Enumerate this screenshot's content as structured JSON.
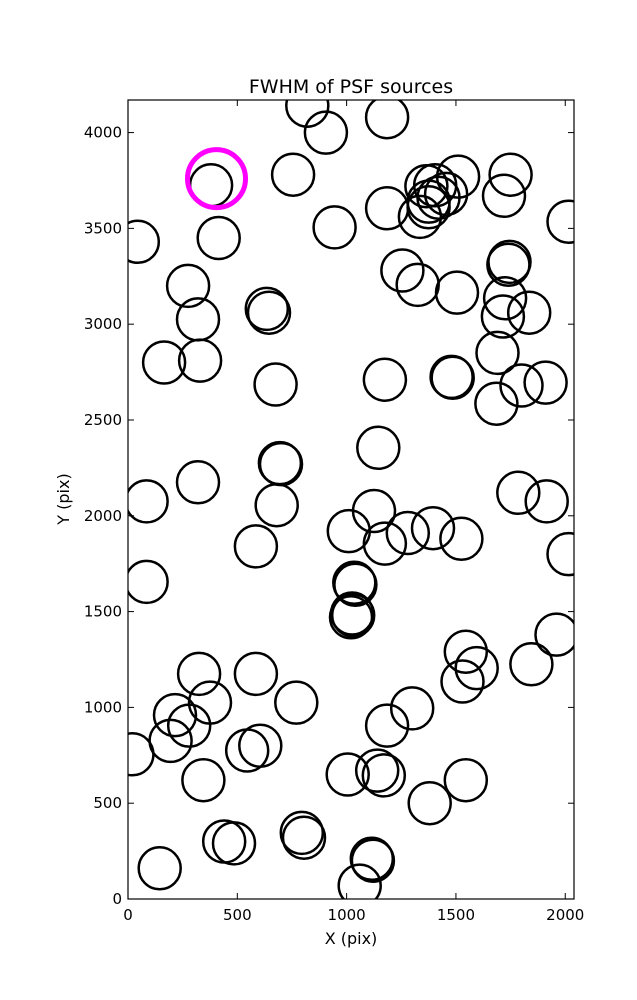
{
  "chart_data": {
    "type": "scatter",
    "title": "FWHM of PSF sources",
    "xlabel": "X (pix)",
    "ylabel": "Y (pix)",
    "xlim": [
      0,
      2040
    ],
    "ylim": [
      0,
      4170
    ],
    "xticks": [
      0,
      500,
      1000,
      1500,
      2000
    ],
    "yticks": [
      0,
      500,
      1000,
      1500,
      2000,
      2500,
      3000,
      3500,
      4000
    ],
    "grid": false,
    "marker": "open-circle",
    "marker_color": "#000000",
    "highlight_color": "#ff00ff",
    "points": [
      [
        820,
        4140
      ],
      [
        905,
        4000
      ],
      [
        1185,
        4080
      ],
      [
        380,
        3725
      ],
      [
        755,
        3780
      ],
      [
        1185,
        3605
      ],
      [
        1365,
        3720
      ],
      [
        1405,
        3725
      ],
      [
        1375,
        3640
      ],
      [
        1420,
        3660
      ],
      [
        1455,
        3680
      ],
      [
        1510,
        3770
      ],
      [
        1750,
        3780
      ],
      [
        1720,
        3670
      ],
      [
        45,
        3430
      ],
      [
        945,
        3505
      ],
      [
        2015,
        3535
      ],
      [
        1335,
        3560
      ],
      [
        1375,
        3610
      ],
      [
        275,
        3200
      ],
      [
        415,
        3450
      ],
      [
        1255,
        3280
      ],
      [
        1325,
        3205
      ],
      [
        1505,
        3165
      ],
      [
        1745,
        3325
      ],
      [
        1740,
        3310
      ],
      [
        1725,
        3135
      ],
      [
        1715,
        3040
      ],
      [
        1835,
        3060
      ],
      [
        635,
        3080
      ],
      [
        645,
        3060
      ],
      [
        320,
        3025
      ],
      [
        165,
        2800
      ],
      [
        330,
        2810
      ],
      [
        675,
        2685
      ],
      [
        1175,
        2710
      ],
      [
        1485,
        2720
      ],
      [
        1480,
        2725
      ],
      [
        1690,
        2850
      ],
      [
        1800,
        2680
      ],
      [
        1910,
        2695
      ],
      [
        1685,
        2585
      ],
      [
        1145,
        2355
      ],
      [
        700,
        2270
      ],
      [
        695,
        2275
      ],
      [
        85,
        2075
      ],
      [
        320,
        2175
      ],
      [
        680,
        2055
      ],
      [
        1010,
        1920
      ],
      [
        1125,
        2025
      ],
      [
        1280,
        1910
      ],
      [
        1395,
        1935
      ],
      [
        1525,
        1880
      ],
      [
        1785,
        2120
      ],
      [
        1915,
        2075
      ],
      [
        1175,
        1855
      ],
      [
        585,
        1840
      ],
      [
        85,
        1655
      ],
      [
        1035,
        1650
      ],
      [
        1040,
        1640
      ],
      [
        2015,
        1800
      ],
      [
        1025,
        1490
      ],
      [
        1020,
        1470
      ],
      [
        1030,
        1480
      ],
      [
        1545,
        1290
      ],
      [
        1595,
        1205
      ],
      [
        1530,
        1135
      ],
      [
        1845,
        1225
      ],
      [
        1960,
        1380
      ],
      [
        325,
        1175
      ],
      [
        585,
        1175
      ],
      [
        375,
        1025
      ],
      [
        770,
        1025
      ],
      [
        215,
        960
      ],
      [
        1300,
        995
      ],
      [
        1185,
        905
      ],
      [
        280,
        905
      ],
      [
        195,
        825
      ],
      [
        20,
        755
      ],
      [
        545,
        775
      ],
      [
        605,
        800
      ],
      [
        345,
        620
      ],
      [
        1005,
        650
      ],
      [
        1140,
        670
      ],
      [
        1170,
        645
      ],
      [
        1545,
        620
      ],
      [
        1380,
        500
      ],
      [
        795,
        345
      ],
      [
        805,
        320
      ],
      [
        440,
        300
      ],
      [
        485,
        290
      ],
      [
        1115,
        210
      ],
      [
        1120,
        200
      ],
      [
        145,
        160
      ],
      [
        1060,
        70
      ]
    ],
    "highlight": [
      [
        405,
        3760
      ]
    ]
  }
}
